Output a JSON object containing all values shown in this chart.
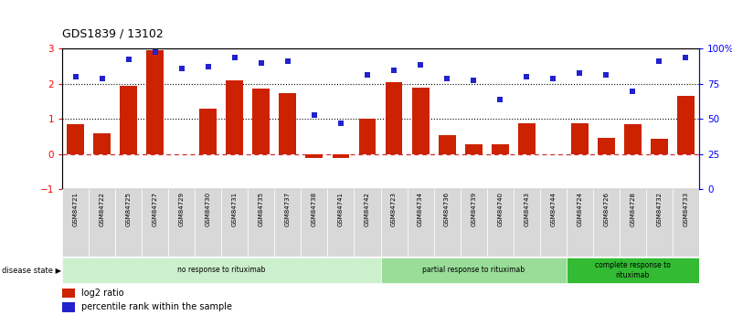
{
  "title": "GDS1839 / 13102",
  "samples": [
    "GSM84721",
    "GSM84722",
    "GSM84725",
    "GSM84727",
    "GSM84729",
    "GSM84730",
    "GSM84731",
    "GSM84735",
    "GSM84737",
    "GSM84738",
    "GSM84741",
    "GSM84742",
    "GSM84723",
    "GSM84734",
    "GSM84736",
    "GSM84739",
    "GSM84740",
    "GSM84743",
    "GSM84744",
    "GSM84724",
    "GSM84726",
    "GSM84728",
    "GSM84732",
    "GSM84733"
  ],
  "log2_ratio": [
    0.85,
    0.6,
    1.95,
    2.95,
    0.0,
    1.3,
    2.1,
    1.87,
    1.73,
    -0.12,
    -0.12,
    1.0,
    2.05,
    1.9,
    0.55,
    0.28,
    0.27,
    0.88,
    0.0,
    0.88,
    0.45,
    0.85,
    0.42,
    1.65
  ],
  "percentile_left": [
    2.2,
    2.15,
    2.7,
    2.92,
    2.45,
    2.5,
    2.75,
    2.6,
    2.65,
    1.1,
    0.88,
    2.25,
    2.4,
    2.55,
    2.15,
    2.1,
    1.55,
    2.2,
    2.15,
    2.3,
    2.25,
    1.8,
    2.65,
    2.75
  ],
  "disease_groups": [
    {
      "label": "no response to rituximab",
      "start": 0,
      "end": 12,
      "color": "#ccf0cc"
    },
    {
      "label": "partial response to rituximab",
      "start": 12,
      "end": 19,
      "color": "#99dd99"
    },
    {
      "label": "complete response to\nrituximab",
      "start": 19,
      "end": 24,
      "color": "#33bb33"
    }
  ],
  "bar_color": "#cc2200",
  "dot_color": "#2222cc",
  "ylim_left": [
    -1,
    3
  ],
  "ylim_right": [
    0,
    100
  ],
  "yticks_left": [
    -1,
    0,
    1,
    2,
    3
  ],
  "yticks_right": [
    0,
    25,
    50,
    75,
    100
  ],
  "hline_zero_color": "#cc3333",
  "legend_red_label": "log2 ratio",
  "legend_blue_label": "percentile rank within the sample",
  "disease_state_label": "disease state"
}
